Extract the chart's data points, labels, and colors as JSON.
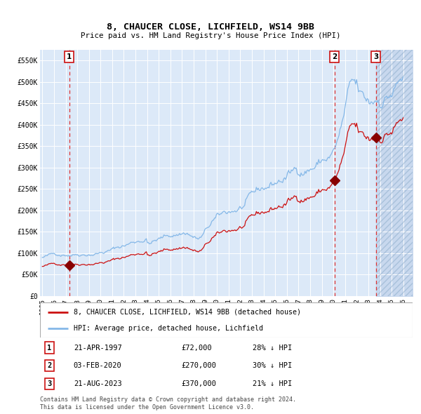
{
  "title": "8, CHAUCER CLOSE, LICHFIELD, WS14 9BB",
  "subtitle": "Price paid vs. HM Land Registry's House Price Index (HPI)",
  "ylim": [
    0,
    575000
  ],
  "xlim_start": 1994.8,
  "xlim_end": 2026.8,
  "bg_color": "#dce9f8",
  "hatch_bg_color": "#c8d8ee",
  "grid_color": "#ffffff",
  "hpi_color": "#85b8e8",
  "price_color": "#cc1111",
  "sale_marker_color": "#880000",
  "dashed_line_color": "#dd3333",
  "ytick_labels": [
    "£0",
    "£50K",
    "£100K",
    "£150K",
    "£200K",
    "£250K",
    "£300K",
    "£350K",
    "£400K",
    "£450K",
    "£500K",
    "£550K"
  ],
  "ytick_values": [
    0,
    50000,
    100000,
    150000,
    200000,
    250000,
    300000,
    350000,
    400000,
    450000,
    500000,
    550000
  ],
  "xtick_years": [
    1995,
    1996,
    1997,
    1998,
    1999,
    2000,
    2001,
    2002,
    2003,
    2004,
    2005,
    2006,
    2007,
    2008,
    2009,
    2010,
    2011,
    2012,
    2013,
    2014,
    2015,
    2016,
    2017,
    2018,
    2019,
    2020,
    2021,
    2022,
    2023,
    2024,
    2025,
    2026
  ],
  "sale1_x": 1997.31,
  "sale1_y": 72000,
  "sale1_label": "1",
  "sale1_date": "21-APR-1997",
  "sale1_price": "£72,000",
  "sale1_hpi": "28% ↓ HPI",
  "sale2_x": 2020.09,
  "sale2_y": 270000,
  "sale2_label": "2",
  "sale2_date": "03-FEB-2020",
  "sale2_price": "£270,000",
  "sale2_hpi": "30% ↓ HPI",
  "sale3_x": 2023.64,
  "sale3_y": 370000,
  "sale3_label": "3",
  "sale3_date": "21-AUG-2023",
  "sale3_price": "£370,000",
  "sale3_hpi": "21% ↓ HPI",
  "legend_line1": "8, CHAUCER CLOSE, LICHFIELD, WS14 9BB (detached house)",
  "legend_line2": "HPI: Average price, detached house, Lichfield",
  "footer1": "Contains HM Land Registry data © Crown copyright and database right 2024.",
  "footer2": "This data is licensed under the Open Government Licence v3.0."
}
